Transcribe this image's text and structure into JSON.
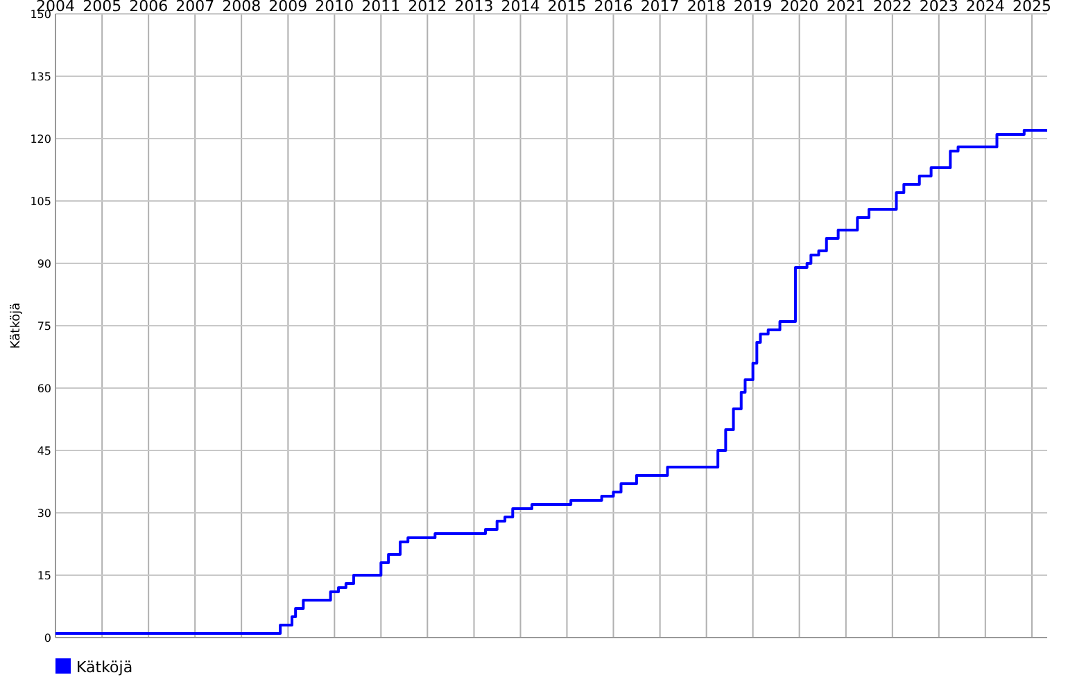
{
  "chart_data": {
    "type": "step",
    "ylabel": "Kätköjä",
    "xlim": [
      "2004-01",
      "2025-05"
    ],
    "ylim": [
      0,
      150
    ],
    "xticks": [
      "2004",
      "2005",
      "2006",
      "2007",
      "2008",
      "2009",
      "2010",
      "2011",
      "2012",
      "2013",
      "2014",
      "2015",
      "2016",
      "2017",
      "2018",
      "2019",
      "2020",
      "2021",
      "2022",
      "2023",
      "2024",
      "2025"
    ],
    "yticks": [
      0,
      15,
      30,
      45,
      60,
      75,
      90,
      105,
      120,
      135,
      150
    ],
    "grid": true,
    "legend": "bottom left",
    "line_style": "solid",
    "marker": "none",
    "series": [
      {
        "name": "Kätköjä",
        "color": "#0000ff",
        "x": [
          "2004-01",
          "2008-11",
          "2009-02",
          "2009-03",
          "2009-05",
          "2009-12",
          "2010-02",
          "2010-04",
          "2010-06",
          "2011-01",
          "2011-03",
          "2011-06",
          "2011-08",
          "2012-03",
          "2013-04",
          "2013-07",
          "2013-09",
          "2013-11",
          "2014-04",
          "2015-02",
          "2015-10",
          "2016-01",
          "2016-03",
          "2016-07",
          "2017-03",
          "2018-04",
          "2018-06",
          "2018-08",
          "2018-10",
          "2018-11",
          "2019-01",
          "2019-02",
          "2019-03",
          "2019-05",
          "2019-08",
          "2019-12",
          "2020-03",
          "2020-04",
          "2020-06",
          "2020-08",
          "2020-11",
          "2021-04",
          "2021-07",
          "2022-02",
          "2022-04",
          "2022-08",
          "2022-11",
          "2023-04",
          "2023-06",
          "2024-04",
          "2024-11",
          "2025-03",
          "2025-05"
        ],
        "values": [
          1,
          3,
          5,
          7,
          9,
          11,
          12,
          13,
          15,
          18,
          20,
          23,
          24,
          25,
          26,
          28,
          29,
          31,
          32,
          33,
          34,
          35,
          37,
          39,
          41,
          45,
          50,
          55,
          59,
          62,
          66,
          71,
          73,
          74,
          76,
          89,
          90,
          92,
          93,
          96,
          98,
          101,
          103,
          107,
          109,
          111,
          113,
          117,
          118,
          121,
          122,
          122,
          122
        ]
      }
    ]
  }
}
